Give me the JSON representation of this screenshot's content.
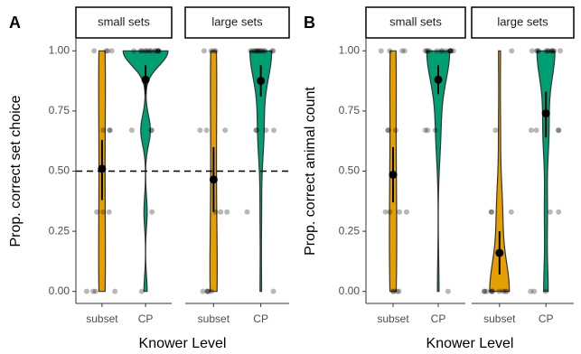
{
  "chart_data": [
    {
      "type": "violin",
      "panel": "A",
      "ylabel": "Prop. correct set choice",
      "xlabel": "Knower Level",
      "ylim": [
        -0.05,
        1.05
      ],
      "yticks": [
        {
          "value": 0,
          "label": "0.00"
        },
        {
          "value": 0.25,
          "label": "0.25"
        },
        {
          "value": 0.5,
          "label": "0.50"
        },
        {
          "value": 0.75,
          "label": "0.75"
        },
        {
          "value": 1,
          "label": "1.00"
        }
      ],
      "reference_line": 0.5,
      "colors": [
        "#E69F00",
        "#009E73"
      ],
      "facets": [
        {
          "title": "small sets",
          "categories": [
            "subset",
            "CP"
          ],
          "means": [
            0.51,
            0.88
          ],
          "ci": [
            [
              0.38,
              0.63
            ],
            [
              0.82,
              0.94
            ]
          ],
          "points": [
            [
              0,
              0,
              0,
              0,
              0.33,
              0.33,
              0.33,
              0.67,
              0.67,
              0.67,
              1,
              1,
              1,
              1
            ],
            [
              0,
              0.33,
              0.67,
              0.67,
              0.67,
              1,
              1,
              1,
              1,
              1,
              1,
              1,
              1,
              1,
              1,
              1,
              1,
              1,
              1
            ]
          ]
        },
        {
          "title": "large sets",
          "categories": [
            "subset",
            "CP"
          ],
          "means": [
            0.465,
            0.875
          ],
          "ci": [
            [
              0.33,
              0.6
            ],
            [
              0.81,
              0.94
            ]
          ],
          "points": [
            [
              0,
              0,
              0,
              0,
              0,
              0.33,
              0.33,
              0.33,
              0.67,
              0.67,
              0.67,
              1,
              1,
              1,
              1
            ],
            [
              0,
              0.33,
              0.67,
              0.67,
              0.67,
              0.67,
              1,
              1,
              1,
              1,
              1,
              1,
              1,
              1,
              1,
              1,
              1,
              1,
              1,
              1
            ]
          ]
        }
      ]
    },
    {
      "type": "violin",
      "panel": "B",
      "ylabel": "Prop. correct animal count",
      "xlabel": "Knower Level",
      "ylim": [
        -0.05,
        1.05
      ],
      "yticks": [
        {
          "value": 0,
          "label": "0.00"
        },
        {
          "value": 0.25,
          "label": "0.25"
        },
        {
          "value": 0.5,
          "label": "0.50"
        },
        {
          "value": 0.75,
          "label": "0.75"
        },
        {
          "value": 1,
          "label": "1.00"
        }
      ],
      "colors": [
        "#E69F00",
        "#009E73"
      ],
      "facets": [
        {
          "title": "small sets",
          "categories": [
            "subset",
            "CP"
          ],
          "means": [
            0.485,
            0.88
          ],
          "ci": [
            [
              0.37,
              0.6
            ],
            [
              0.82,
              0.94
            ]
          ],
          "points": [
            [
              0,
              0,
              0,
              0,
              0.33,
              0.33,
              0.33,
              0.33,
              0.67,
              0.67,
              0.67,
              1,
              1,
              1,
              1
            ],
            [
              0,
              0.67,
              0.67,
              0.67,
              1,
              1,
              1,
              1,
              1,
              1,
              1,
              1,
              1,
              1,
              1,
              1,
              1,
              1
            ]
          ]
        },
        {
          "title": "large sets",
          "categories": [
            "subset",
            "CP"
          ],
          "means": [
            0.16,
            0.74
          ],
          "ci": [
            [
              0.07,
              0.25
            ],
            [
              0.64,
              0.83
            ]
          ],
          "points": [
            [
              0,
              0,
              0,
              0,
              0,
              0,
              0,
              0,
              0,
              0,
              0.33,
              0.33,
              0.33,
              0.67,
              1
            ],
            [
              0,
              0,
              0,
              0.33,
              0.33,
              0.67,
              0.67,
              0.67,
              0.67,
              1,
              1,
              1,
              1,
              1,
              1,
              1,
              1,
              1,
              1,
              1,
              1
            ]
          ]
        }
      ]
    }
  ]
}
